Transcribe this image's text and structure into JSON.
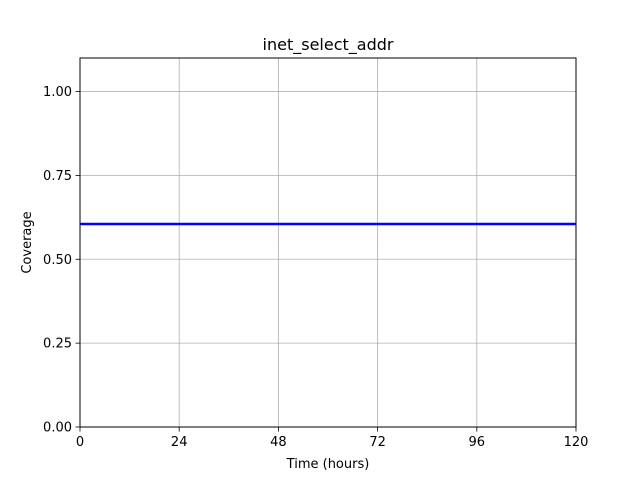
{
  "chart_data": {
    "type": "line",
    "title": "inet_select_addr",
    "xlabel": "Time (hours)",
    "ylabel": "Coverage",
    "xlim": [
      0,
      120
    ],
    "ylim": [
      0,
      1.1
    ],
    "xticks": [
      0,
      24,
      48,
      72,
      96,
      120
    ],
    "xtick_labels": [
      "0",
      "24",
      "48",
      "72",
      "96",
      "120"
    ],
    "yticks": [
      0,
      0.25,
      0.5,
      0.75,
      1.0
    ],
    "ytick_labels": [
      "0.00",
      "0.25",
      "0.50",
      "0.75",
      "1.00"
    ],
    "grid": true,
    "series": [
      {
        "color": "#0000ff",
        "x": [
          0,
          120
        ],
        "y": [
          0.605,
          0.605
        ]
      }
    ]
  }
}
